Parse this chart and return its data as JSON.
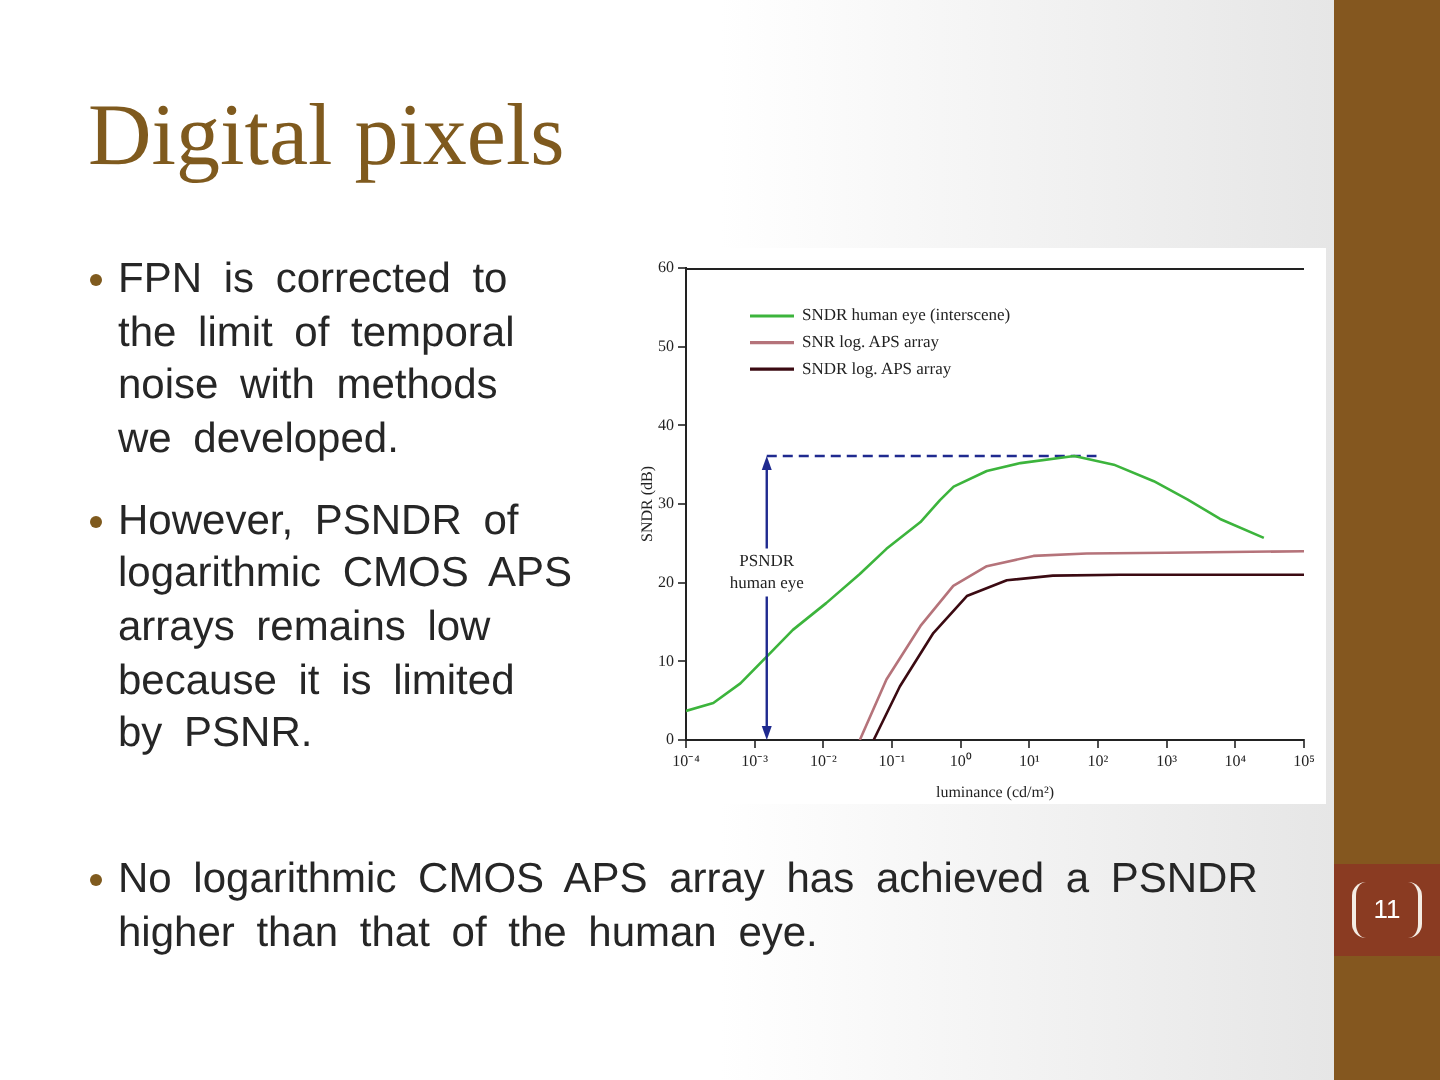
{
  "chart_data": {
    "type": "line",
    "title": "Digital pixels",
    "xlabel": "luminance (cd/m²)",
    "ylabel": "SNDR (dB)",
    "log": "x",
    "legend": "top left",
    "xlim": [
      0.0001,
      100000
    ],
    "xticks": [
      {
        "value": 0.0001,
        "label": "10⁻⁴"
      },
      {
        "value": 0.001,
        "label": "10⁻³"
      },
      {
        "value": 0.01,
        "label": "10⁻²"
      },
      {
        "value": 0.1,
        "label": "10⁻¹"
      },
      {
        "value": 1,
        "label": "10⁰"
      },
      {
        "value": 10,
        "label": "10¹"
      },
      {
        "value": 100,
        "label": "10²"
      },
      {
        "value": 1000,
        "label": "10³"
      },
      {
        "value": 10000,
        "label": "10⁴"
      },
      {
        "value": 100000,
        "label": "10⁵"
      }
    ],
    "ylim": [
      0,
      60
    ],
    "yticks": [
      0,
      10,
      20,
      30,
      40,
      50,
      60
    ],
    "series": [
      {
        "name": "SNDR human eye (interscene)",
        "color": "#3cb43c",
        "x": [
          0.0001,
          0.00025,
          0.00062,
          0.0015,
          0.0036,
          0.011,
          0.034,
          0.083,
          0.26,
          0.5,
          0.79,
          2.4,
          7.4,
          45,
          170,
          650,
          2000,
          6000,
          26000
        ],
        "values": [
          3.7,
          4.7,
          7.2,
          10.6,
          14,
          17.4,
          21.1,
          24.3,
          27.7,
          30.5,
          32.2,
          34.2,
          35.2,
          36.1,
          35,
          32.9,
          30.6,
          28.1,
          25.7
        ]
      },
      {
        "name": "SNR log. APS array",
        "color": "#b5737a",
        "x": [
          0.034,
          0.083,
          0.26,
          0.78,
          2.4,
          11.5,
          68,
          1000,
          100000
        ],
        "values": [
          0,
          7.7,
          14.5,
          19.6,
          22.1,
          23.4,
          23.7,
          23.8,
          24
        ]
      },
      {
        "name": "SNDR log. APS array",
        "color": "#3b0a12",
        "x": [
          0.054,
          0.13,
          0.4,
          1.23,
          4.7,
          22,
          210,
          100000
        ],
        "values": [
          0,
          6.8,
          13.6,
          18.3,
          20.3,
          20.9,
          21,
          21
        ]
      },
      {
        "color": "#1f2a8f",
        "line_style": "dashed",
        "x": [
          0.0015,
          95
        ],
        "values": [
          36.1,
          36.1
        ]
      }
    ],
    "annotations": [
      "FPN is corrected to the limit of temporal noise with methods we developed.",
      "However, PSNDR of logarithmic CMOS APS arrays remains low because it is limited by PSNR.",
      "No logarithmic CMOS APS array has achieved a PSNDR higher than that of the human eye.",
      "11",
      {
        "text": "PSNDR\nhuman eye",
        "x": 0.0015,
        "y": 36.1
      }
    ]
  }
}
